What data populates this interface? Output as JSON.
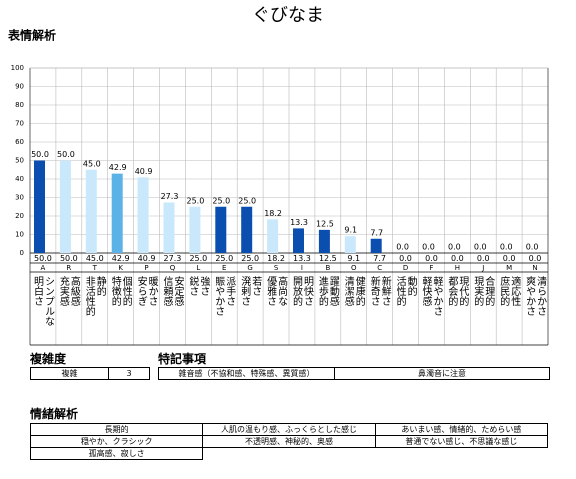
{
  "title": "ぐびなま",
  "chart_data": {
    "type": "bar",
    "title": "表情解析",
    "categories": [
      "A",
      "R",
      "T",
      "K",
      "P",
      "Q",
      "L",
      "E",
      "G",
      "S",
      "I",
      "B",
      "O",
      "C",
      "D",
      "F",
      "H",
      "J",
      "M",
      "N"
    ],
    "descriptions": [
      [
        "明白さ",
        "シンプルな"
      ],
      [
        "充実感",
        "高級感"
      ],
      [
        "非活性的",
        "静的"
      ],
      [
        "特徴的",
        "個性的"
      ],
      [
        "安らぎ",
        "暖かさ"
      ],
      [
        "信頼感",
        "安定感"
      ],
      [
        "鋭さ",
        "強さ"
      ],
      [
        "賑やかさ",
        "派手さ"
      ],
      [
        "溌剌さ",
        "若さ"
      ],
      [
        "優雅さ",
        "高尚な"
      ],
      [
        "開放的",
        "明快さ"
      ],
      [
        "進歩的",
        "躍動感"
      ],
      [
        "清潔感",
        "健康的"
      ],
      [
        "新奇さ",
        "新鮮さ"
      ],
      [
        "活性的",
        "動的"
      ],
      [
        "軽快感",
        "軽やかさ"
      ],
      [
        "都会的",
        "現代的"
      ],
      [
        "現実的",
        "合理的"
      ],
      [
        "庶民的",
        "適応性"
      ],
      [
        "爽やかさ",
        "清らかさ"
      ]
    ],
    "values": [
      50,
      50,
      45,
      42.9,
      40.9,
      27.3,
      25,
      25,
      25,
      18.2,
      13.3,
      12.5,
      9.1,
      7.7,
      0,
      0,
      0,
      0,
      0,
      0
    ],
    "value_labels": [
      "50.0",
      "50.0",
      "45.0",
      "42.9",
      "40.9",
      "27.3",
      "25.0",
      "25.0",
      "25.0",
      "18.2",
      "13.3",
      "12.5",
      "9.1",
      "7.7",
      "0.0",
      "0.0",
      "0.0",
      "0.0",
      "0.0",
      "0.0"
    ],
    "colors": [
      "#0a4fb0",
      "#c9e8fb",
      "#c9e8fb",
      "#5ab2e6",
      "#c9e8fb",
      "#c9e8fb",
      "#c9e8fb",
      "#0a4fb0",
      "#0a4fb0",
      "#c9e8fb",
      "#0a4fb0",
      "#0a4fb0",
      "#c9e8fb",
      "#0a4fb0",
      "#c9e8fb",
      "#c9e8fb",
      "#c9e8fb",
      "#c9e8fb",
      "#c9e8fb",
      "#c9e8fb"
    ],
    "ylim": [
      0,
      100
    ],
    "yticks": [
      0,
      10,
      20,
      30,
      40,
      50,
      60,
      70,
      80,
      90,
      100
    ],
    "grid": true
  },
  "complexity": {
    "heading": "複雑度",
    "label": "複雑",
    "value": 3
  },
  "notes": {
    "heading": "特記事項",
    "items": [
      "雑音感（不協和感、特殊感、異質感）",
      "鼻濁音に注意"
    ]
  },
  "emotion": {
    "heading": "情緒解析",
    "rows": [
      [
        "長期的",
        "人肌の温もり感、ふっくらとした感じ",
        "あいまい感、情緒的、ためらい感"
      ],
      [
        "穏やか、クラシック",
        "不透明感、神秘的、奥感",
        "普通でない感じ、不思議な感じ"
      ],
      [
        "孤高感、寂しさ"
      ]
    ]
  }
}
